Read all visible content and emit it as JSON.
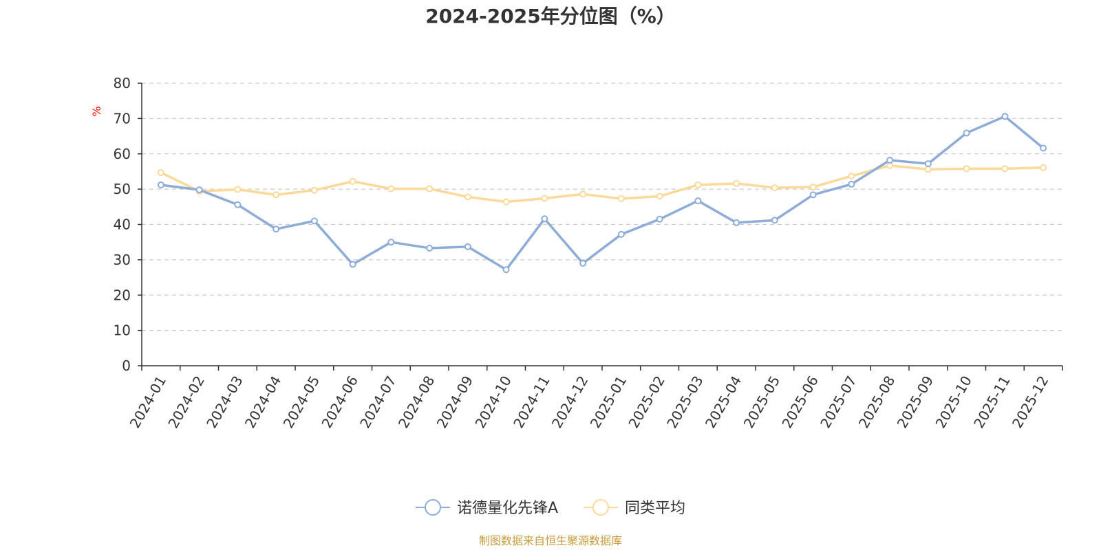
{
  "chart_data": {
    "type": "line",
    "title": "2024-2025年分位图（%）",
    "ylabel": "%",
    "ylim": [
      0,
      80
    ],
    "yticks": [
      "0",
      "10",
      "20",
      "30",
      "40",
      "50",
      "60",
      "70",
      "80"
    ],
    "grid": true,
    "legend_position": "bottom-center",
    "categories": [
      "2024-01",
      "2024-02",
      "2024-03",
      "2024-04",
      "2024-05",
      "2024-06",
      "2024-07",
      "2024-08",
      "2024-09",
      "2024-10",
      "2024-11",
      "2024-12",
      "2025-01",
      "2025-02",
      "2025-03",
      "2025-04",
      "2025-05",
      "2025-06",
      "2025-07",
      "2025-08",
      "2025-09",
      "2025-10",
      "2025-11",
      "2025-12"
    ],
    "series": [
      {
        "name": "诺德量化先锋A",
        "color": "#8eacd8",
        "values": [
          51.2,
          49.8,
          45.6,
          38.7,
          41.0,
          28.7,
          35.0,
          33.3,
          33.7,
          27.2,
          41.6,
          29.0,
          37.2,
          41.5,
          46.7,
          40.5,
          41.2,
          48.4,
          51.4,
          58.2,
          57.2,
          65.9,
          70.6,
          61.6
        ]
      },
      {
        "name": "同类平均",
        "color": "#fbd999",
        "values": [
          54.7,
          49.4,
          49.9,
          48.4,
          49.7,
          52.2,
          50.1,
          50.1,
          47.8,
          46.4,
          47.4,
          48.6,
          47.3,
          48.0,
          51.2,
          51.6,
          50.4,
          50.6,
          53.7,
          56.7,
          55.6,
          55.8,
          55.8,
          56.1
        ]
      }
    ],
    "source": "制图数据来自恒生聚源数据库",
    "colors": {
      "title": "#333333",
      "axis": "#333333",
      "grid": "#cccccc",
      "unit": "#ff0000",
      "source": "#c89b3c"
    }
  }
}
